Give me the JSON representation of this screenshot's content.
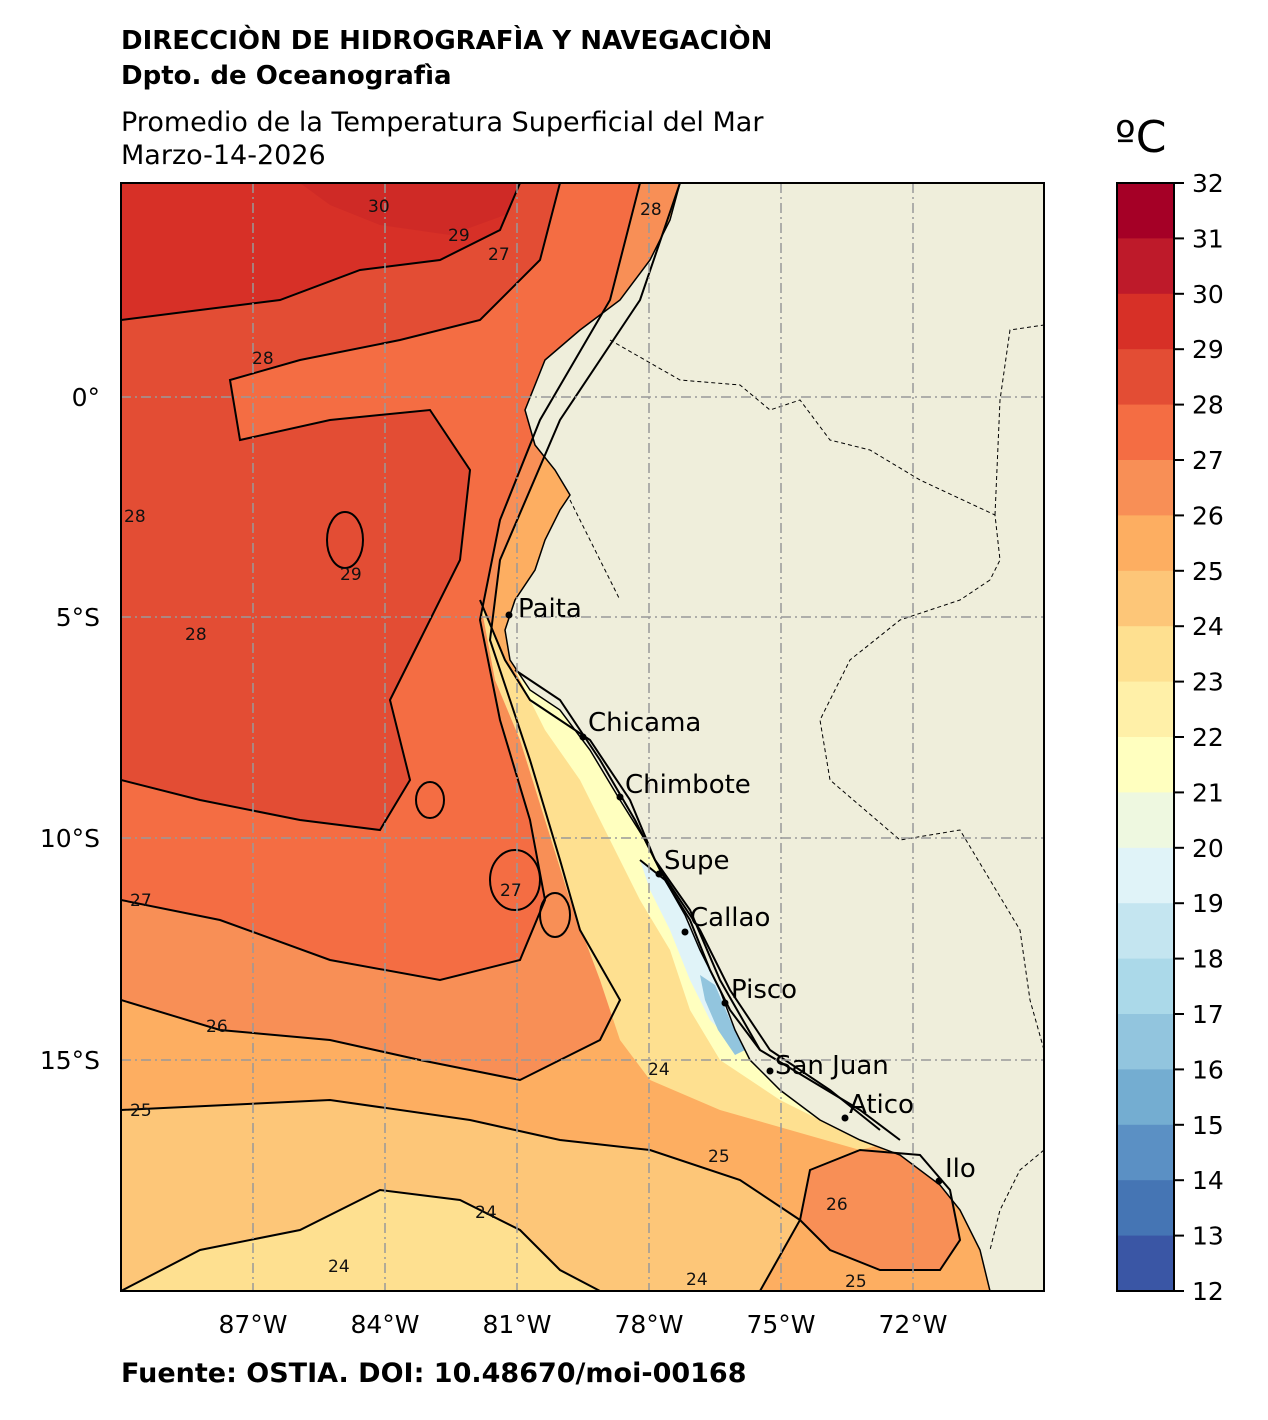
{
  "header": {
    "organization": "DIRECCIÒN DE HIDROGRAFÌA Y NAVEGACIÒN",
    "department": "Dpto. de Oceanografìa",
    "title": "Promedio de la Temperatura Superficial del Mar",
    "date": "Marzo-14-2026"
  },
  "footer": {
    "source": "Fuente: OSTIA. DOI: 10.48670/moi-00168"
  },
  "colorbar": {
    "unit": "ºC",
    "ticks": [
      "32",
      "31",
      "30",
      "29",
      "28",
      "27",
      "26",
      "25",
      "24",
      "23",
      "22",
      "21",
      "20",
      "19",
      "18",
      "17",
      "16",
      "15",
      "14",
      "13",
      "12"
    ],
    "colors": [
      "#a50026",
      "#be1a2a",
      "#d73027",
      "#e34d34",
      "#f46d43",
      "#f88f56",
      "#fdae61",
      "#fdc678",
      "#fee090",
      "#fff0a8",
      "#ffffbf",
      "#eef8e0",
      "#e0f3f8",
      "#c4e5f0",
      "#abd9e9",
      "#92c5de",
      "#74add1",
      "#5b90c4",
      "#4575b4",
      "#3a56a5"
    ]
  },
  "axes": {
    "lon_labels": [
      "87°W",
      "84°W",
      "81°W",
      "78°W",
      "75°W",
      "72°W"
    ],
    "lat_labels": [
      "0°",
      "5°S",
      "10°S",
      "15°S"
    ]
  },
  "cities": [
    "Paita",
    "Chicama",
    "Chimbote",
    "Supe",
    "Callao",
    "Pisco",
    "San Juan",
    "Atico",
    "Ilo"
  ],
  "contour_labels": [
    "30",
    "29",
    "28",
    "27",
    "26",
    "25",
    "24"
  ],
  "colors": {
    "land": "#efeedb",
    "frame": "#000000"
  }
}
